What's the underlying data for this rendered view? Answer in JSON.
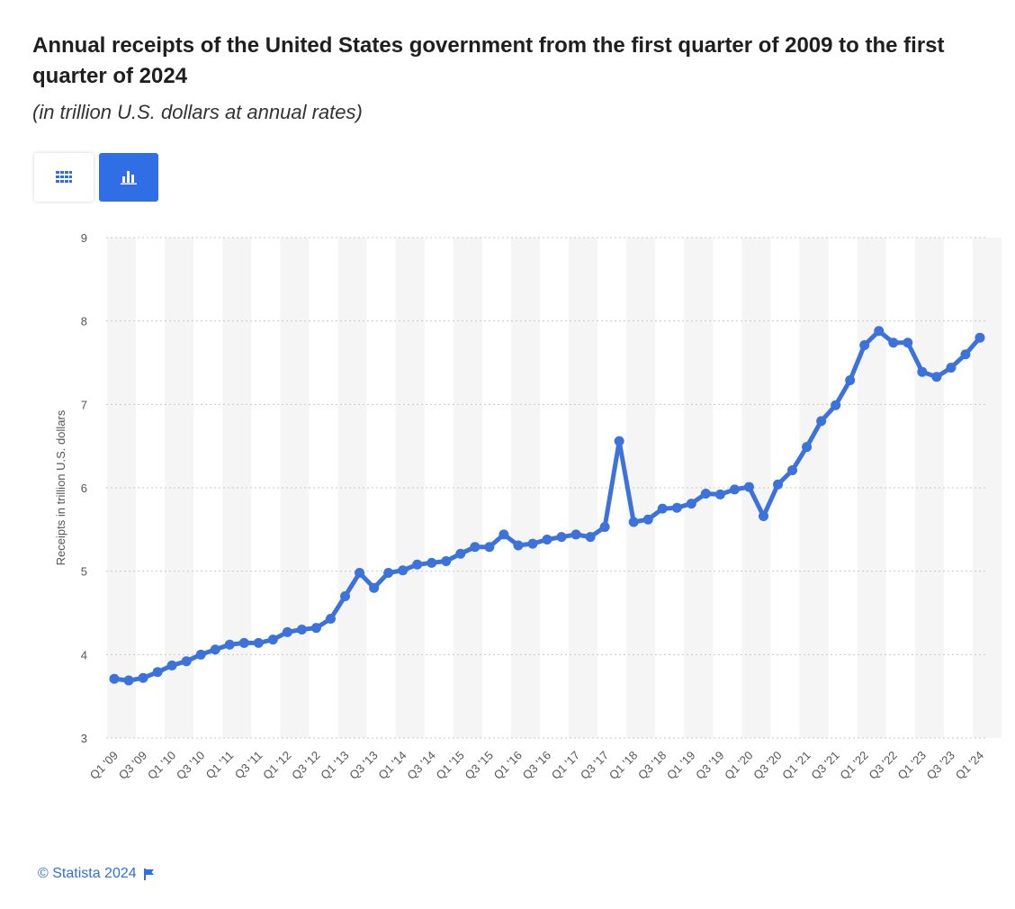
{
  "header": {
    "title": "Annual receipts of the United States government from the first quarter of 2009 to the first quarter of 2024",
    "subtitle": "(in trillion U.S. dollars at annual rates)"
  },
  "toolbar": {
    "table_icon": "grid-icon",
    "chart_icon": "bar-chart-icon",
    "active_view": "chart",
    "accent_color": "#2f6ee5"
  },
  "footer": {
    "copyright": "© Statista 2024",
    "flag_icon": "flag-icon"
  },
  "chart_data": {
    "type": "line",
    "ylabel": "Receipts in trillion U.S. dollars",
    "xlabel": "",
    "ylim": [
      3,
      9
    ],
    "yticks": [
      3,
      4,
      5,
      6,
      7,
      8,
      9
    ],
    "grid": true,
    "line_color": "#3b72db",
    "band_color": "#f5f5f5",
    "categories": [
      "Q1 '09",
      "Q2 '09",
      "Q3 '09",
      "Q4 '09",
      "Q1 '10",
      "Q2 '10",
      "Q3 '10",
      "Q4 '10",
      "Q1 '11",
      "Q2 '11",
      "Q3 '11",
      "Q4 '11",
      "Q1 '12",
      "Q2 '12",
      "Q3 '12",
      "Q4 '12",
      "Q1 '13",
      "Q2 '13",
      "Q3 '13",
      "Q4 '13",
      "Q1 '14",
      "Q2 '14",
      "Q3 '14",
      "Q4 '14",
      "Q1 '15",
      "Q2 '15",
      "Q3 '15",
      "Q4 '15",
      "Q1 '16",
      "Q2 '16",
      "Q3 '16",
      "Q4 '16",
      "Q1 '17",
      "Q2 '17",
      "Q3 '17",
      "Q4 '17",
      "Q1 '18",
      "Q2 '18",
      "Q3 '18",
      "Q4 '18",
      "Q1 '19",
      "Q2 '19",
      "Q3 '19",
      "Q4 '19",
      "Q1 '20",
      "Q2 '20",
      "Q3 '20",
      "Q4 '20",
      "Q1 '21",
      "Q2 '21",
      "Q3 '21",
      "Q4 '21",
      "Q1 '22",
      "Q2 '22",
      "Q3 '22",
      "Q4 '22",
      "Q1 '23",
      "Q2 '23",
      "Q3 '23",
      "Q4 '23",
      "Q1 '24"
    ],
    "tick_labels": [
      "Q1 '09",
      "Q3 '09",
      "Q1 '10",
      "Q3 '10",
      "Q1 '11",
      "Q3 '11",
      "Q1 '12",
      "Q3 '12",
      "Q1 '13",
      "Q3 '13",
      "Q1 '14",
      "Q3 '14",
      "Q1 '15",
      "Q3 '15",
      "Q1 '16",
      "Q3 '16",
      "Q1 '17",
      "Q3 '17",
      "Q1 '18",
      "Q3 '18",
      "Q1 '19",
      "Q3 '19",
      "Q1 '20",
      "Q3 '20",
      "Q1 '21",
      "Q3 '21",
      "Q1 '22",
      "Q3 '22",
      "Q1 '23",
      "Q3 '23",
      "Q1 '24"
    ],
    "series": [
      {
        "values": [
          3.71,
          3.69,
          3.72,
          3.79,
          3.87,
          3.92,
          4.0,
          4.06,
          4.12,
          4.14,
          4.14,
          4.18,
          4.27,
          4.3,
          4.32,
          4.43,
          4.7,
          4.98,
          4.8,
          4.98,
          5.01,
          5.08,
          5.1,
          5.12,
          5.21,
          5.29,
          5.29,
          5.44,
          5.31,
          5.33,
          5.38,
          5.41,
          5.44,
          5.41,
          5.53,
          6.56,
          5.59,
          5.62,
          5.75,
          5.76,
          5.81,
          5.93,
          5.92,
          5.98,
          6.01,
          5.66,
          6.04,
          6.21,
          6.49,
          6.8,
          6.99,
          7.29,
          7.71,
          7.88,
          7.74,
          7.74,
          7.39,
          7.33,
          7.44,
          7.6,
          7.8
        ]
      }
    ]
  }
}
